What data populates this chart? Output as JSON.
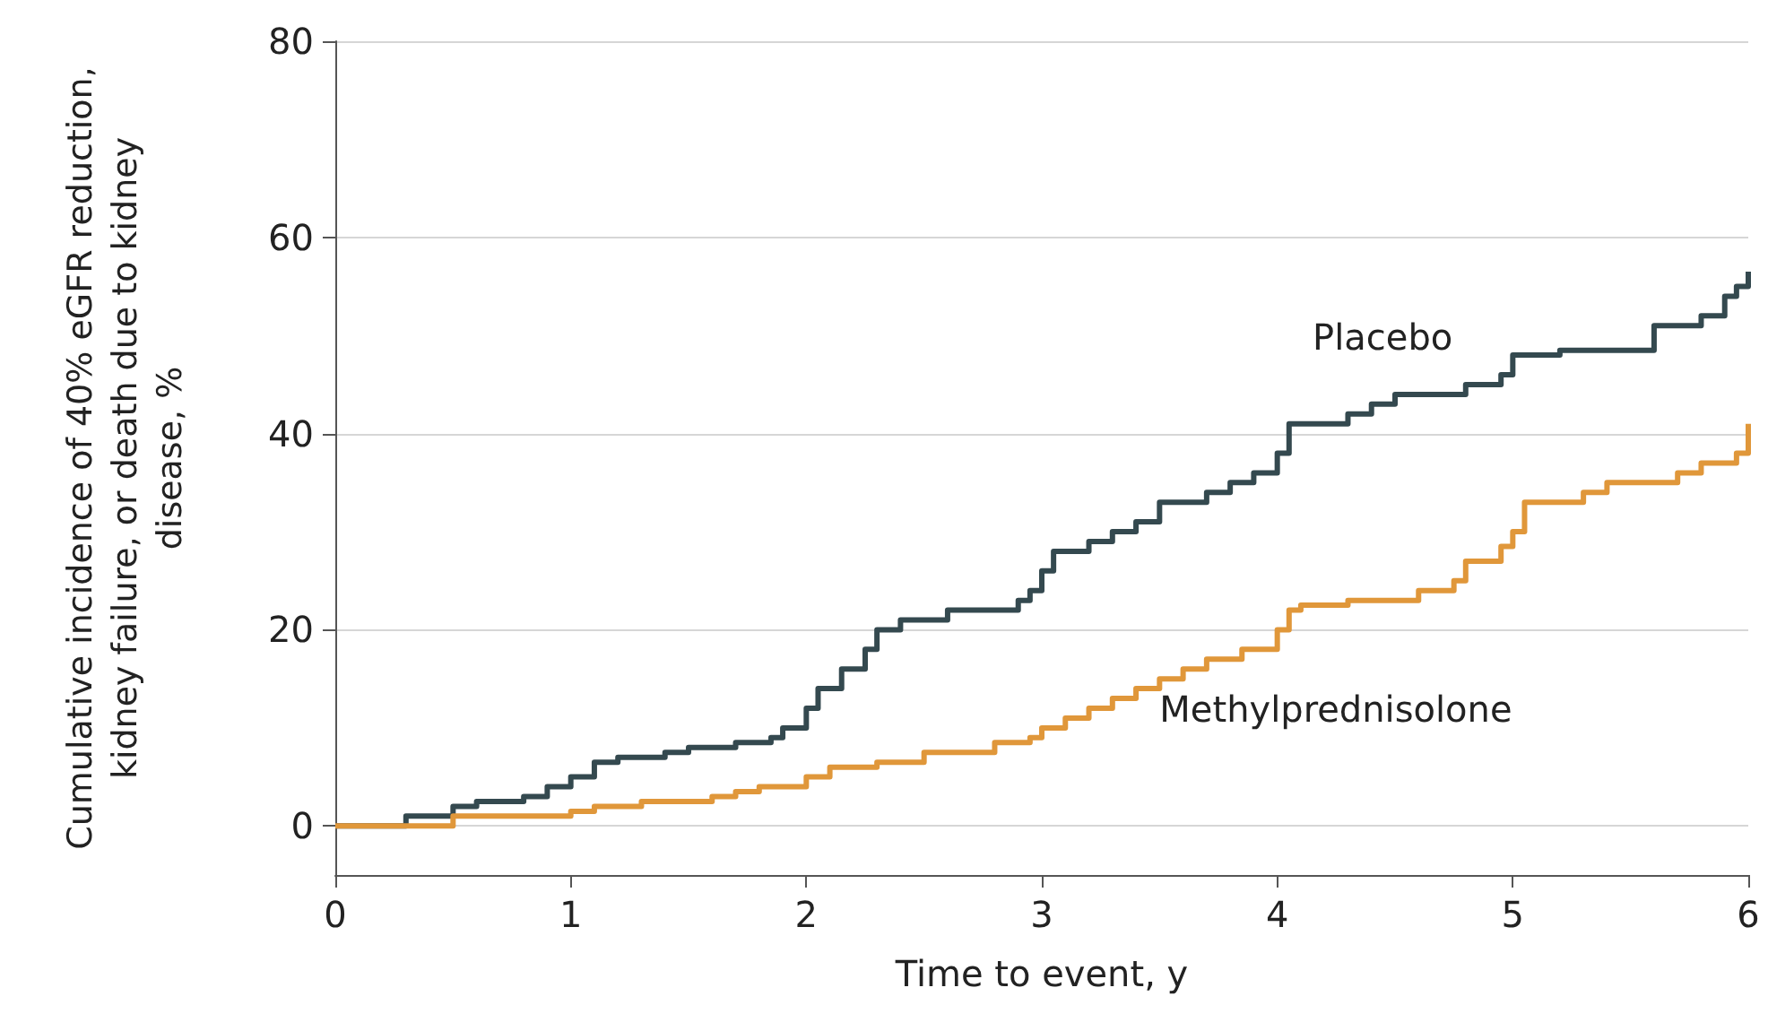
{
  "chart_data": {
    "type": "step",
    "xlabel": "Time to event, y",
    "ylabel": "Cumulative incidence of 40% eGFR reduction, kidney failure, or death due to kidney disease, %",
    "xlim": [
      0,
      6
    ],
    "xticks": [
      0,
      1,
      2,
      3,
      4,
      5,
      6
    ],
    "ylim": [
      -5,
      80
    ],
    "yticks": [
      0,
      20,
      40,
      60,
      80
    ],
    "grid": "y",
    "legend": false,
    "line_style": "solid",
    "marker": "none",
    "series": [
      {
        "name": "Placebo",
        "color": "#34494f",
        "x": [
          0,
          0.3,
          0.5,
          0.6,
          0.8,
          0.9,
          1.0,
          1.1,
          1.2,
          1.4,
          1.5,
          1.7,
          1.85,
          1.9,
          2.0,
          2.05,
          2.15,
          2.25,
          2.3,
          2.4,
          2.6,
          2.9,
          2.95,
          3.0,
          3.05,
          3.2,
          3.3,
          3.4,
          3.5,
          3.7,
          3.8,
          3.9,
          4.0,
          4.05,
          4.3,
          4.4,
          4.5,
          4.8,
          4.95,
          5.0,
          5.2,
          5.6,
          5.8,
          5.9,
          5.95,
          6.0
        ],
        "values": [
          0,
          1,
          2,
          2.5,
          3,
          4,
          5,
          6.5,
          7,
          7.5,
          8,
          8.5,
          9,
          10,
          12,
          14,
          16,
          18,
          20,
          21,
          22,
          23,
          24,
          26,
          28,
          29,
          30,
          31,
          33,
          34,
          35,
          36,
          38,
          41,
          42,
          43,
          44,
          45,
          46,
          48,
          48.5,
          51,
          52,
          54,
          55,
          56.5
        ]
      },
      {
        "name": "Methylprednisolone",
        "color": "#e0973a",
        "x": [
          0,
          0.5,
          1.0,
          1.1,
          1.3,
          1.6,
          1.7,
          1.8,
          2.0,
          2.1,
          2.3,
          2.5,
          2.8,
          2.95,
          3.0,
          3.1,
          3.2,
          3.3,
          3.4,
          3.5,
          3.6,
          3.7,
          3.85,
          4.0,
          4.05,
          4.1,
          4.3,
          4.6,
          4.75,
          4.8,
          4.95,
          5.0,
          5.05,
          5.3,
          5.4,
          5.7,
          5.8,
          5.95,
          6.0
        ],
        "values": [
          0,
          1,
          1.5,
          2,
          2.5,
          3,
          3.5,
          4,
          5,
          6,
          6.5,
          7.5,
          8.5,
          9,
          10,
          11,
          12,
          13,
          14,
          15,
          16,
          17,
          18,
          20,
          22,
          22.5,
          23,
          24,
          25,
          27,
          28.5,
          30,
          33,
          34,
          35,
          36,
          37,
          38,
          41
        ]
      }
    ]
  }
}
